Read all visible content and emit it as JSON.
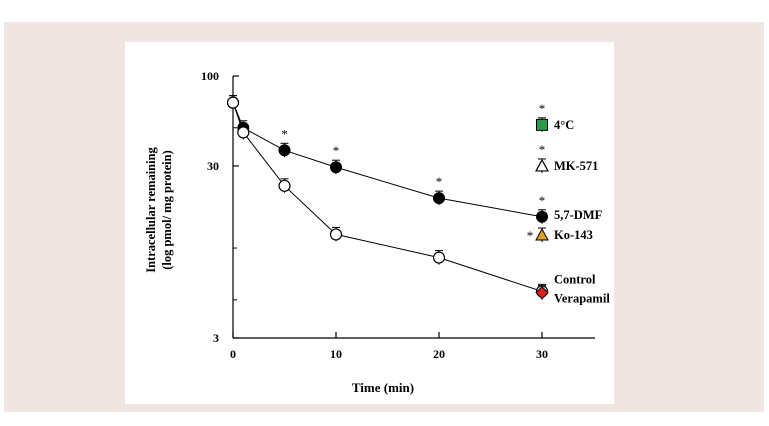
{
  "chart_data": {
    "type": "scatter",
    "xlabel": "Time (min)",
    "ylabel": [
      "Intracellular remaining",
      "(log pmol/ mg protein)"
    ],
    "ylog": true,
    "xlim": [
      0,
      35
    ],
    "ylim": [
      3,
      100
    ],
    "xticks": [
      0,
      10,
      20,
      30
    ],
    "xtick_labels": [
      "0",
      "10",
      "20",
      "30"
    ],
    "yticks": [
      100,
      30,
      3
    ],
    "ytick_labels": [
      "100",
      "30",
      "3"
    ],
    "grid": false,
    "legend": "right, labels placed next to end points",
    "series": [
      {
        "name": "5,7-DMF",
        "marker": "filled-circle",
        "color": "#000000",
        "connected": true,
        "x": [
          0,
          1,
          5,
          10,
          20,
          30
        ],
        "y": [
          70,
          50,
          37,
          29.5,
          19.5,
          15.2
        ],
        "significance": [
          "",
          "",
          "*",
          "*",
          "*",
          "*"
        ]
      },
      {
        "name": "Control",
        "marker": "open-circle",
        "color": "#000000",
        "connected": true,
        "x": [
          0,
          1,
          5,
          10,
          20,
          30
        ],
        "y": [
          70,
          47,
          23,
          12,
          8.8,
          5.6
        ]
      },
      {
        "name": "4°C",
        "marker": "square",
        "color": "#2a9d4a",
        "connected": false,
        "x": [
          30
        ],
        "y": [
          52
        ],
        "significance": [
          "*"
        ]
      },
      {
        "name": "MK-571",
        "marker": "open-triangle",
        "color": "#000000",
        "connected": false,
        "x": [
          30
        ],
        "y": [
          30
        ],
        "significance": [
          "*"
        ]
      },
      {
        "name": "Ko-143",
        "marker": "triangle",
        "color": "#e0a020",
        "connected": false,
        "x": [
          30
        ],
        "y": [
          11.9
        ],
        "significance": [
          "*"
        ]
      },
      {
        "name": "Verapamil",
        "marker": "diamond",
        "color": "#e02020",
        "connected": false,
        "x": [
          30
        ],
        "y": [
          5.5
        ]
      }
    ]
  }
}
